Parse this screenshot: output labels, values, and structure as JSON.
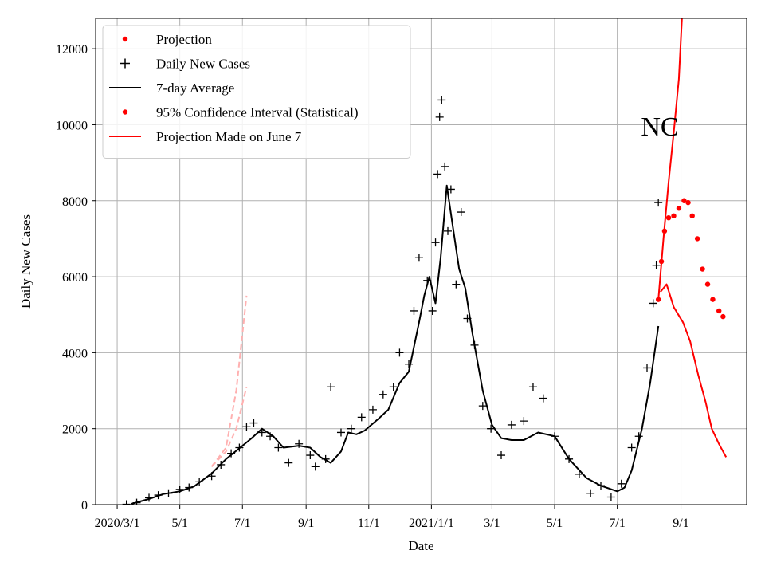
{
  "chart_data": {
    "type": "line",
    "title": "NC",
    "xlabel": "Date",
    "ylabel": "Daily New Cases",
    "xlim": [
      "2020-02-09",
      "2021-11-04"
    ],
    "ylim": [
      0,
      12800
    ],
    "grid": true,
    "legend_position": "top-left",
    "x_ticks": [
      {
        "date": "2020-03-01",
        "label": "2020/3/1"
      },
      {
        "date": "2020-05-01",
        "label": "5/1"
      },
      {
        "date": "2020-07-01",
        "label": "7/1"
      },
      {
        "date": "2020-09-01",
        "label": "9/1"
      },
      {
        "date": "2020-11-01",
        "label": "11/1"
      },
      {
        "date": "2021-01-01",
        "label": "2021/1/1"
      },
      {
        "date": "2021-03-01",
        "label": "3/1"
      },
      {
        "date": "2021-05-01",
        "label": "5/1"
      },
      {
        "date": "2021-07-01",
        "label": "7/1"
      },
      {
        "date": "2021-09-01",
        "label": "9/1"
      }
    ],
    "y_ticks": [
      0,
      2000,
      4000,
      6000,
      8000,
      10000,
      12000
    ],
    "legend": [
      {
        "label": "Projection",
        "style": "dot",
        "color": "#ff0000"
      },
      {
        "label": "Daily New Cases",
        "style": "plus",
        "color": "#000000"
      },
      {
        "label": "7-day Average",
        "style": "line",
        "color": "#000000"
      },
      {
        "label": "95% Confidence Interval (Statistical)",
        "style": "dot",
        "color": "#ff0000"
      },
      {
        "label": "Projection Made on June 7",
        "style": "line",
        "color": "#ff0000"
      }
    ],
    "series": [
      {
        "name": "7-day Average",
        "style": "line",
        "color": "#000000",
        "points": [
          [
            "2020-03-15",
            20
          ],
          [
            "2020-04-01",
            150
          ],
          [
            "2020-04-15",
            280
          ],
          [
            "2020-05-01",
            350
          ],
          [
            "2020-05-15",
            480
          ],
          [
            "2020-06-01",
            820
          ],
          [
            "2020-06-15",
            1200
          ],
          [
            "2020-07-01",
            1550
          ],
          [
            "2020-07-10",
            1750
          ],
          [
            "2020-07-20",
            2000
          ],
          [
            "2020-07-31",
            1800
          ],
          [
            "2020-08-10",
            1500
          ],
          [
            "2020-08-25",
            1550
          ],
          [
            "2020-09-05",
            1500
          ],
          [
            "2020-09-15",
            1250
          ],
          [
            "2020-09-25",
            1100
          ],
          [
            "2020-10-05",
            1400
          ],
          [
            "2020-10-12",
            1900
          ],
          [
            "2020-10-20",
            1850
          ],
          [
            "2020-10-28",
            1950
          ],
          [
            "2020-11-10",
            2250
          ],
          [
            "2020-11-20",
            2500
          ],
          [
            "2020-12-01",
            3200
          ],
          [
            "2020-12-10",
            3500
          ],
          [
            "2020-12-20",
            4800
          ],
          [
            "2020-12-25",
            5500
          ],
          [
            "2020-12-30",
            6000
          ],
          [
            "2021-01-05",
            5300
          ],
          [
            "2021-01-10",
            6500
          ],
          [
            "2021-01-16",
            8400
          ],
          [
            "2021-01-22",
            7300
          ],
          [
            "2021-01-28",
            6200
          ],
          [
            "2021-02-03",
            5700
          ],
          [
            "2021-02-10",
            4500
          ],
          [
            "2021-02-20",
            3000
          ],
          [
            "2021-03-01",
            2100
          ],
          [
            "2021-03-10",
            1750
          ],
          [
            "2021-03-20",
            1700
          ],
          [
            "2021-04-01",
            1700
          ],
          [
            "2021-04-15",
            1900
          ],
          [
            "2021-05-01",
            1800
          ],
          [
            "2021-05-15",
            1200
          ],
          [
            "2021-06-01",
            700
          ],
          [
            "2021-06-15",
            500
          ],
          [
            "2021-07-01",
            350
          ],
          [
            "2021-07-08",
            450
          ],
          [
            "2021-07-15",
            900
          ],
          [
            "2021-07-25",
            2000
          ],
          [
            "2021-08-02",
            3200
          ],
          [
            "2021-08-10",
            4700
          ]
        ]
      },
      {
        "name": "Daily New Cases",
        "style": "plus",
        "color": "#000000",
        "points": [
          [
            "2020-03-10",
            10
          ],
          [
            "2020-03-20",
            50
          ],
          [
            "2020-04-01",
            180
          ],
          [
            "2020-04-10",
            250
          ],
          [
            "2020-04-20",
            300
          ],
          [
            "2020-05-01",
            400
          ],
          [
            "2020-05-10",
            450
          ],
          [
            "2020-05-20",
            600
          ],
          [
            "2020-06-01",
            750
          ],
          [
            "2020-06-10",
            1050
          ],
          [
            "2020-06-20",
            1350
          ],
          [
            "2020-06-28",
            1500
          ],
          [
            "2020-07-05",
            2050
          ],
          [
            "2020-07-12",
            2150
          ],
          [
            "2020-07-20",
            1900
          ],
          [
            "2020-07-28",
            1800
          ],
          [
            "2020-08-05",
            1500
          ],
          [
            "2020-08-15",
            1100
          ],
          [
            "2020-08-25",
            1600
          ],
          [
            "2020-09-05",
            1300
          ],
          [
            "2020-09-10",
            1000
          ],
          [
            "2020-09-20",
            1200
          ],
          [
            "2020-09-25",
            3100
          ],
          [
            "2020-10-05",
            1900
          ],
          [
            "2020-10-15",
            2000
          ],
          [
            "2020-10-25",
            2300
          ],
          [
            "2020-11-05",
            2500
          ],
          [
            "2020-11-15",
            2900
          ],
          [
            "2020-11-25",
            3100
          ],
          [
            "2020-12-01",
            4000
          ],
          [
            "2020-12-10",
            3700
          ],
          [
            "2020-12-15",
            5100
          ],
          [
            "2020-12-20",
            6500
          ],
          [
            "2020-12-28",
            5900
          ],
          [
            "2021-01-02",
            5100
          ],
          [
            "2021-01-05",
            6900
          ],
          [
            "2021-01-07",
            8700
          ],
          [
            "2021-01-09",
            10200
          ],
          [
            "2021-01-11",
            10650
          ],
          [
            "2021-01-14",
            8900
          ],
          [
            "2021-01-17",
            7200
          ],
          [
            "2021-01-20",
            8300
          ],
          [
            "2021-01-25",
            5800
          ],
          [
            "2021-01-30",
            7700
          ],
          [
            "2021-02-05",
            4900
          ],
          [
            "2021-02-12",
            4200
          ],
          [
            "2021-02-20",
            2600
          ],
          [
            "2021-02-28",
            2000
          ],
          [
            "2021-03-10",
            1300
          ],
          [
            "2021-03-20",
            2100
          ],
          [
            "2021-04-01",
            2200
          ],
          [
            "2021-04-10",
            3100
          ],
          [
            "2021-04-20",
            2800
          ],
          [
            "2021-05-01",
            1800
          ],
          [
            "2021-05-15",
            1200
          ],
          [
            "2021-05-25",
            800
          ],
          [
            "2021-06-05",
            300
          ],
          [
            "2021-06-15",
            500
          ],
          [
            "2021-06-25",
            200
          ],
          [
            "2021-07-05",
            550
          ],
          [
            "2021-07-15",
            1500
          ],
          [
            "2021-07-22",
            1800
          ],
          [
            "2021-07-30",
            3600
          ],
          [
            "2021-08-05",
            5300
          ],
          [
            "2021-08-08",
            6300
          ],
          [
            "2021-08-10",
            7950
          ]
        ]
      },
      {
        "name": "Projection",
        "style": "dot",
        "color": "#ff0000",
        "points": [
          [
            "2021-08-10",
            5400
          ],
          [
            "2021-08-13",
            6400
          ],
          [
            "2021-08-16",
            7200
          ],
          [
            "2021-08-20",
            7550
          ],
          [
            "2021-08-25",
            7600
          ],
          [
            "2021-08-30",
            7800
          ],
          [
            "2021-09-04",
            8000
          ],
          [
            "2021-09-08",
            7950
          ],
          [
            "2021-09-12",
            7600
          ],
          [
            "2021-09-17",
            7000
          ],
          [
            "2021-09-22",
            6200
          ],
          [
            "2021-09-27",
            5800
          ],
          [
            "2021-10-02",
            5400
          ],
          [
            "2021-10-08",
            5100
          ],
          [
            "2021-10-12",
            4950
          ]
        ]
      },
      {
        "name": "Projection Made on June 7 (upper)",
        "style": "line",
        "color": "#ff0000",
        "points": [
          [
            "2021-08-10",
            5400
          ],
          [
            "2021-08-15",
            7000
          ],
          [
            "2021-08-20",
            8500
          ],
          [
            "2021-08-25",
            9800
          ],
          [
            "2021-08-30",
            11200
          ],
          [
            "2021-09-02",
            12800
          ]
        ]
      },
      {
        "name": "Projection Made on June 7 (lower)",
        "style": "line",
        "color": "#ff0000",
        "points": [
          [
            "2021-08-12",
            5600
          ],
          [
            "2021-08-18",
            5800
          ],
          [
            "2021-08-25",
            5200
          ],
          [
            "2021-09-03",
            4800
          ],
          [
            "2021-09-10",
            4300
          ],
          [
            "2021-09-18",
            3400
          ],
          [
            "2021-09-25",
            2700
          ],
          [
            "2021-10-01",
            2000
          ],
          [
            "2021-10-08",
            1600
          ],
          [
            "2021-10-15",
            1250
          ]
        ]
      },
      {
        "name": "Early projection band",
        "style": "dashed",
        "color": "#ffb0b0",
        "points": [
          [
            "2020-06-01",
            1000
          ],
          [
            "2020-06-15",
            1400
          ],
          [
            "2020-06-25",
            2000
          ],
          [
            "2020-07-05",
            3100
          ]
        ]
      },
      {
        "name": "Early projection band upper",
        "style": "dashed",
        "color": "#ffb0b0",
        "points": [
          [
            "2020-06-01",
            1000
          ],
          [
            "2020-06-15",
            1500
          ],
          [
            "2020-06-25",
            3000
          ],
          [
            "2020-07-05",
            5500
          ]
        ]
      }
    ]
  }
}
